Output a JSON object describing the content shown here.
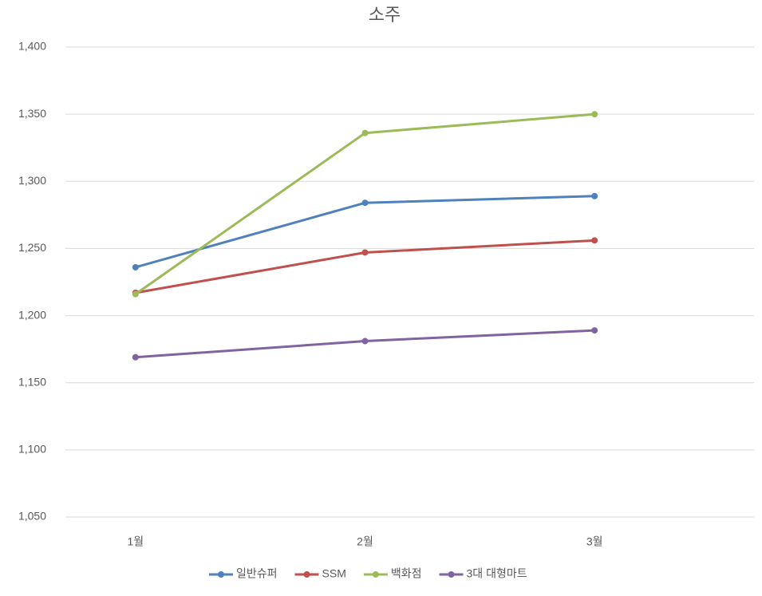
{
  "chart_data": {
    "type": "line",
    "title": "소주",
    "categories": [
      "1월",
      "2월",
      "3월"
    ],
    "series": [
      {
        "name": "일반슈퍼",
        "color": "#4f81bd",
        "values": [
          1236,
          1284,
          1289
        ]
      },
      {
        "name": "SSM",
        "color": "#c0504d",
        "values": [
          1217,
          1247,
          1256
        ]
      },
      {
        "name": "백화점",
        "color": "#9bbb59",
        "values": [
          1216,
          1336,
          1350
        ]
      },
      {
        "name": "3대 대형마트",
        "color": "#8064a2",
        "values": [
          1169,
          1181,
          1189
        ]
      }
    ],
    "ylim": [
      1050,
      1400
    ],
    "yticks": [
      {
        "value": 1050,
        "label": "1,050"
      },
      {
        "value": 1100,
        "label": "1,100"
      },
      {
        "value": 1150,
        "label": "1,150"
      },
      {
        "value": 1200,
        "label": "1,200"
      },
      {
        "value": 1250,
        "label": "1,250"
      },
      {
        "value": 1300,
        "label": "1,300"
      },
      {
        "value": 1350,
        "label": "1,350"
      },
      {
        "value": 1400,
        "label": "1,400"
      }
    ],
    "grid": true,
    "legend": "bottom"
  }
}
